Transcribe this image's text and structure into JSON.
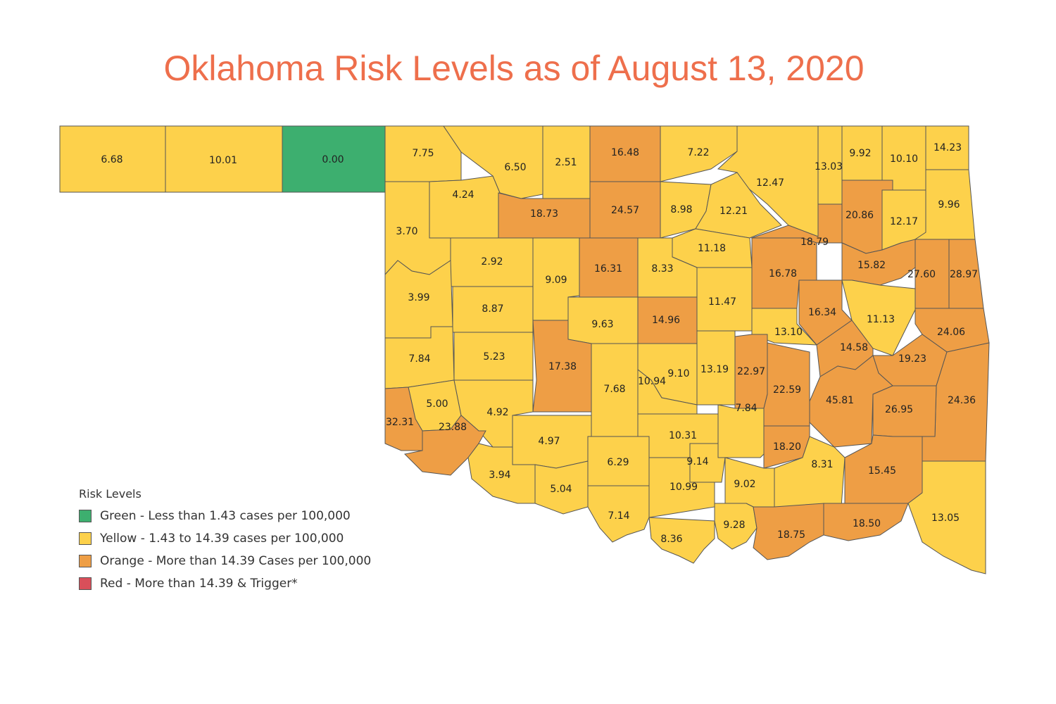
{
  "title": "Oklahoma Risk Levels as of August 13, 2020",
  "colors": {
    "green": "#3daf6f",
    "yellow": "#fdd14b",
    "orange": "#ee9e45",
    "red": "#d94f5a",
    "title": "#ee6f4c"
  },
  "legend": {
    "title": "Risk Levels",
    "items": [
      {
        "label": "Green - Less than 1.43 cases per 100,000",
        "color": "#3daf6f"
      },
      {
        "label": "Yellow - 1.43 to 14.39 cases per 100,000",
        "color": "#fdd14b"
      },
      {
        "label": "Orange - More than 14.39 Cases per 100,000",
        "color": "#ee9e45"
      },
      {
        "label": "Red - More than 14.39 & Trigger*",
        "color": "#d94f5a"
      }
    ]
  },
  "counties": [
    {
      "value": "6.68",
      "level": "yellow"
    },
    {
      "value": "10.01",
      "level": "yellow"
    },
    {
      "value": "0.00",
      "level": "green"
    },
    {
      "value": "7.75",
      "level": "yellow"
    },
    {
      "value": "6.50",
      "level": "yellow"
    },
    {
      "value": "2.51",
      "level": "yellow"
    },
    {
      "value": "16.48",
      "level": "orange"
    },
    {
      "value": "7.22",
      "level": "yellow"
    },
    {
      "value": "12.47",
      "level": "yellow"
    },
    {
      "value": "13.03",
      "level": "yellow"
    },
    {
      "value": "9.92",
      "level": "yellow"
    },
    {
      "value": "10.10",
      "level": "yellow"
    },
    {
      "value": "14.23",
      "level": "yellow"
    },
    {
      "value": "4.24",
      "level": "yellow"
    },
    {
      "value": "18.73",
      "level": "orange"
    },
    {
      "value": "24.57",
      "level": "orange"
    },
    {
      "value": "8.98",
      "level": "yellow"
    },
    {
      "value": "12.21",
      "level": "yellow"
    },
    {
      "value": "20.86",
      "level": "orange"
    },
    {
      "value": "12.17",
      "level": "yellow"
    },
    {
      "value": "9.96",
      "level": "yellow"
    },
    {
      "value": "3.70",
      "level": "yellow"
    },
    {
      "value": "18.79",
      "level": "orange"
    },
    {
      "value": "11.18",
      "level": "yellow"
    },
    {
      "value": "2.92",
      "level": "yellow"
    },
    {
      "value": "9.09",
      "level": "yellow"
    },
    {
      "value": "16.31",
      "level": "orange"
    },
    {
      "value": "8.33",
      "level": "yellow"
    },
    {
      "value": "16.78",
      "level": "orange"
    },
    {
      "value": "15.82",
      "level": "orange"
    },
    {
      "value": "27.60",
      "level": "orange"
    },
    {
      "value": "28.97",
      "level": "orange"
    },
    {
      "value": "3.99",
      "level": "yellow"
    },
    {
      "value": "8.87",
      "level": "yellow"
    },
    {
      "value": "16.34",
      "level": "orange"
    },
    {
      "value": "11.47",
      "level": "yellow"
    },
    {
      "value": "9.63",
      "level": "yellow"
    },
    {
      "value": "14.96",
      "level": "orange"
    },
    {
      "value": "11.13",
      "level": "yellow"
    },
    {
      "value": "13.10",
      "level": "yellow"
    },
    {
      "value": "24.06",
      "level": "orange"
    },
    {
      "value": "7.84",
      "level": "yellow"
    },
    {
      "value": "5.23",
      "level": "yellow"
    },
    {
      "value": "17.38",
      "level": "orange"
    },
    {
      "value": "14.58",
      "level": "orange"
    },
    {
      "value": "19.23",
      "level": "orange"
    },
    {
      "value": "9.10",
      "level": "yellow"
    },
    {
      "value": "13.19",
      "level": "yellow"
    },
    {
      "value": "22.97",
      "level": "orange"
    },
    {
      "value": "10.94",
      "level": "yellow"
    },
    {
      "value": "7.68",
      "level": "yellow"
    },
    {
      "value": "22.59",
      "level": "orange"
    },
    {
      "value": "45.81",
      "level": "orange"
    },
    {
      "value": "24.36",
      "level": "orange"
    },
    {
      "value": "5.00",
      "level": "yellow"
    },
    {
      "value": "26.95",
      "level": "orange"
    },
    {
      "value": "4.92",
      "level": "yellow"
    },
    {
      "value": "32.31",
      "level": "orange"
    },
    {
      "value": "23.88",
      "level": "orange"
    },
    {
      "value": "7.84",
      "level": "yellow"
    },
    {
      "value": "10.31",
      "level": "yellow"
    },
    {
      "value": "4.97",
      "level": "yellow"
    },
    {
      "value": "18.20",
      "level": "orange"
    },
    {
      "value": "9.14",
      "level": "yellow"
    },
    {
      "value": "6.29",
      "level": "yellow"
    },
    {
      "value": "8.31",
      "level": "yellow"
    },
    {
      "value": "15.45",
      "level": "orange"
    },
    {
      "value": "3.94",
      "level": "yellow"
    },
    {
      "value": "10.99",
      "level": "yellow"
    },
    {
      "value": "9.02",
      "level": "yellow"
    },
    {
      "value": "5.04",
      "level": "yellow"
    },
    {
      "value": "7.14",
      "level": "yellow"
    },
    {
      "value": "9.28",
      "level": "yellow"
    },
    {
      "value": "18.50",
      "level": "orange"
    },
    {
      "value": "13.05",
      "level": "yellow"
    },
    {
      "value": "18.75",
      "level": "orange"
    },
    {
      "value": "8.36",
      "level": "yellow"
    }
  ]
}
